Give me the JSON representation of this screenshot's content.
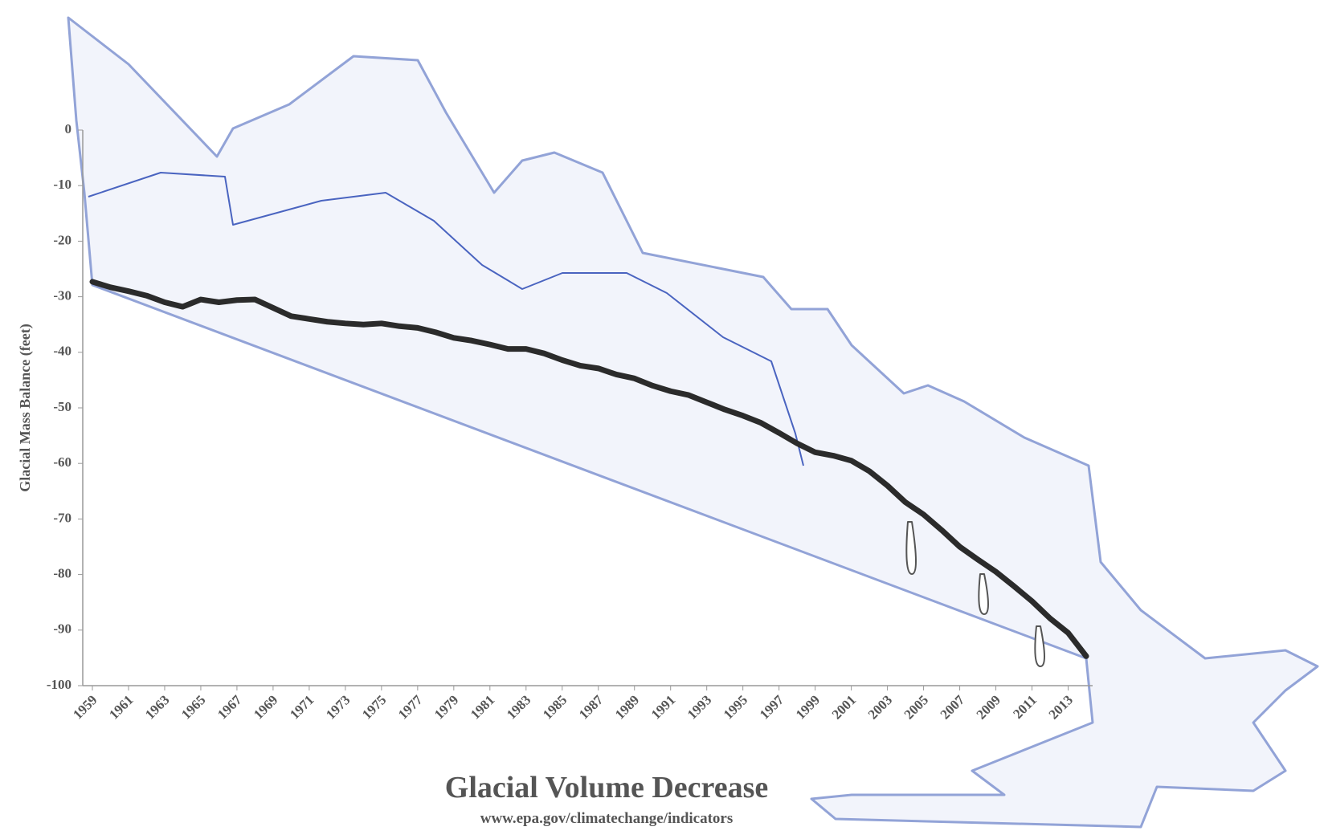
{
  "chart_data": {
    "type": "line",
    "title": "Glacial Volume Decrease",
    "subtitle": "www.epa.gov/climatechange/indicators",
    "y_label": "Glacial Mass Balance (feet)",
    "x": [
      1959,
      1960,
      1961,
      1962,
      1963,
      1964,
      1965,
      1966,
      1967,
      1968,
      1969,
      1970,
      1971,
      1972,
      1973,
      1974,
      1975,
      1976,
      1977,
      1978,
      1979,
      1980,
      1981,
      1982,
      1983,
      1984,
      1985,
      1986,
      1987,
      1988,
      1989,
      1990,
      1991,
      1992,
      1993,
      1994,
      1995,
      1996,
      1997,
      1998,
      1999,
      2000,
      2001,
      2002,
      2003,
      2004,
      2005,
      2006,
      2007,
      2008,
      2009,
      2010,
      2011,
      2012,
      2013,
      2014
    ],
    "values": [
      -27.3,
      -28.3,
      -29,
      -29.8,
      -31,
      -31.8,
      -30.5,
      -31,
      -30.6,
      -30.5,
      -32,
      -33.5,
      -34,
      -34.5,
      -34.8,
      -35,
      -34.8,
      -35.3,
      -35.6,
      -36.4,
      -37.4,
      -37.9,
      -38.6,
      -39.4,
      -39.4,
      -40.2,
      -41.4,
      -42.4,
      -42.9,
      -44,
      -44.7,
      -46,
      -47,
      -47.7,
      -49,
      -50.3,
      -51.4,
      -52.7,
      -54.5,
      -56.4,
      -58,
      -58.6,
      -59.5,
      -61.4,
      -64,
      -67,
      -69.2,
      -72,
      -75,
      -77.3,
      -79.5,
      -82.1,
      -84.8,
      -87.9,
      -90.5,
      -94.7
    ],
    "color": "#2b2b2b",
    "xlim": [
      1959,
      2014
    ],
    "xticks": [
      1959,
      1961,
      1963,
      1965,
      1967,
      1969,
      1971,
      1973,
      1975,
      1977,
      1979,
      1981,
      1983,
      1985,
      1987,
      1989,
      1991,
      1993,
      1995,
      1997,
      1999,
      2001,
      2003,
      2005,
      2007,
      2009,
      2011,
      2013
    ],
    "ylim": [
      -100,
      0
    ],
    "yticks": [
      0,
      -10,
      -20,
      -30,
      -40,
      -50,
      -60,
      -70,
      -80,
      -90,
      -100
    ]
  }
}
